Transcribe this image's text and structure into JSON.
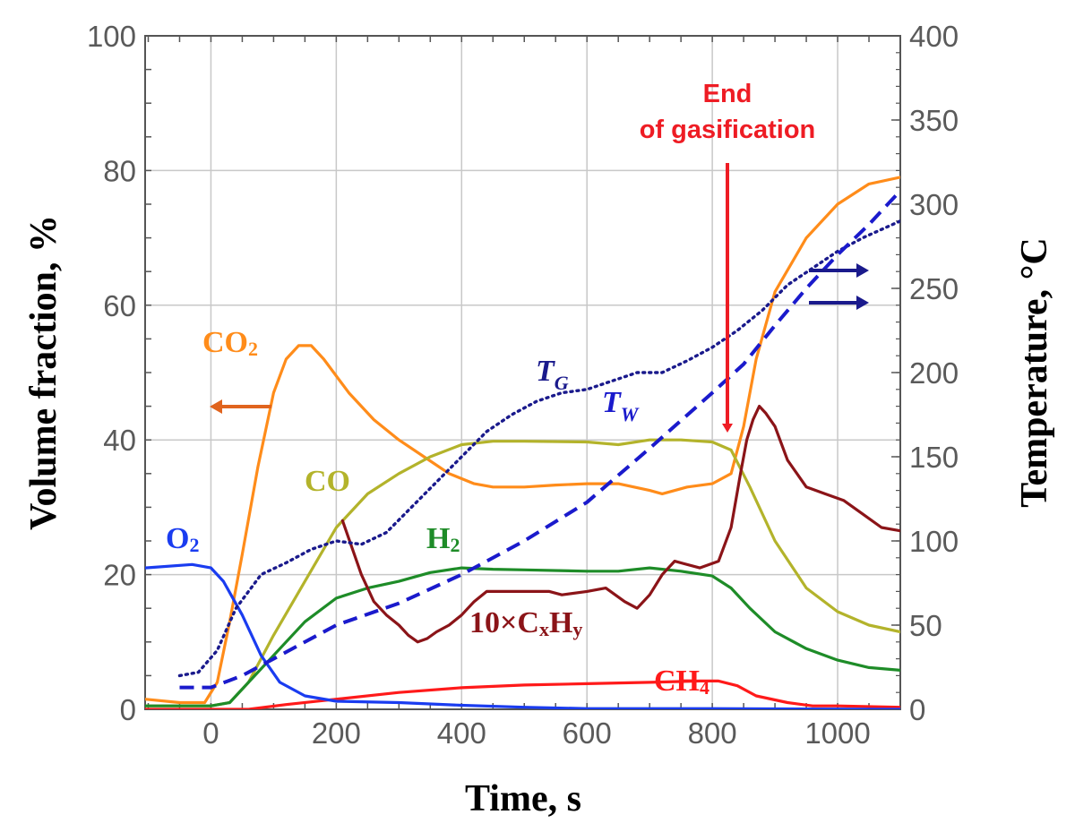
{
  "chart_data": {
    "type": "line",
    "xlabel": "Time, s",
    "ylabel_left": "Volume fraction, %",
    "ylabel_right": "Temperature, °C",
    "xlim": [
      -105,
      1100
    ],
    "ylim_left": [
      0,
      100
    ],
    "ylim_right": [
      0,
      400
    ],
    "grid": true,
    "x_ticks": [
      0,
      200,
      400,
      600,
      800,
      1000
    ],
    "y_left_ticks": [
      0,
      20,
      40,
      60,
      80,
      100
    ],
    "y_right_ticks": [
      0,
      50,
      100,
      150,
      200,
      250,
      300,
      350,
      400
    ],
    "annotation": {
      "line1": "End",
      "line2": "of gasification",
      "x": 830,
      "color": "#ee1c24"
    },
    "series": [
      {
        "name": "CO2",
        "label_main": "CO",
        "label_sub": "2",
        "axis": "left",
        "color": "#ff8c1a",
        "dash": "solid",
        "points": [
          [
            -105,
            1.5
          ],
          [
            -50,
            1
          ],
          [
            -10,
            1
          ],
          [
            10,
            4
          ],
          [
            30,
            13
          ],
          [
            50,
            23
          ],
          [
            75,
            36
          ],
          [
            100,
            47
          ],
          [
            120,
            52
          ],
          [
            140,
            54
          ],
          [
            160,
            54
          ],
          [
            180,
            52
          ],
          [
            220,
            47
          ],
          [
            260,
            43
          ],
          [
            300,
            40
          ],
          [
            340,
            37.5
          ],
          [
            380,
            35
          ],
          [
            420,
            33.5
          ],
          [
            450,
            33
          ],
          [
            500,
            33
          ],
          [
            550,
            33.3
          ],
          [
            600,
            33.5
          ],
          [
            650,
            33.5
          ],
          [
            700,
            32.5
          ],
          [
            720,
            32
          ],
          [
            760,
            33
          ],
          [
            800,
            33.5
          ],
          [
            830,
            35
          ],
          [
            850,
            42
          ],
          [
            870,
            52
          ],
          [
            900,
            62
          ],
          [
            950,
            70
          ],
          [
            1000,
            75
          ],
          [
            1050,
            78
          ],
          [
            1100,
            79
          ]
        ]
      },
      {
        "name": "CO",
        "label_main": "CO",
        "label_sub": "",
        "axis": "left",
        "color": "#b3b32b",
        "dash": "solid",
        "points": [
          [
            -105,
            0.5
          ],
          [
            0,
            0.5
          ],
          [
            30,
            1
          ],
          [
            60,
            4
          ],
          [
            100,
            11
          ],
          [
            150,
            19
          ],
          [
            200,
            27
          ],
          [
            250,
            32
          ],
          [
            300,
            35
          ],
          [
            350,
            37.5
          ],
          [
            400,
            39.3
          ],
          [
            450,
            39.8
          ],
          [
            500,
            39.8
          ],
          [
            600,
            39.7
          ],
          [
            650,
            39.3
          ],
          [
            700,
            40
          ],
          [
            750,
            40
          ],
          [
            800,
            39.7
          ],
          [
            830,
            38.5
          ],
          [
            860,
            33
          ],
          [
            900,
            25
          ],
          [
            950,
            18
          ],
          [
            1000,
            14.5
          ],
          [
            1050,
            12.5
          ],
          [
            1100,
            11.5
          ]
        ]
      },
      {
        "name": "H2",
        "label_main": "H",
        "label_sub": "2",
        "axis": "left",
        "color": "#1e8c28",
        "dash": "solid",
        "points": [
          [
            -105,
            0.5
          ],
          [
            0,
            0.5
          ],
          [
            30,
            1
          ],
          [
            60,
            4
          ],
          [
            100,
            8
          ],
          [
            150,
            13
          ],
          [
            200,
            16.5
          ],
          [
            250,
            18
          ],
          [
            300,
            19
          ],
          [
            350,
            20.3
          ],
          [
            400,
            21
          ],
          [
            450,
            20.8
          ],
          [
            500,
            20.7
          ],
          [
            600,
            20.5
          ],
          [
            650,
            20.5
          ],
          [
            700,
            21
          ],
          [
            750,
            20.5
          ],
          [
            800,
            19.8
          ],
          [
            830,
            18
          ],
          [
            860,
            15
          ],
          [
            900,
            11.5
          ],
          [
            950,
            9
          ],
          [
            1000,
            7.3
          ],
          [
            1050,
            6.2
          ],
          [
            1100,
            5.8
          ]
        ]
      },
      {
        "name": "CH4",
        "label_main": "CH",
        "label_sub": "4",
        "axis": "left",
        "color": "#ff1a1a",
        "dash": "solid",
        "points": [
          [
            -105,
            0
          ],
          [
            60,
            0
          ],
          [
            120,
            0.7
          ],
          [
            200,
            1.5
          ],
          [
            300,
            2.5
          ],
          [
            400,
            3.2
          ],
          [
            500,
            3.6
          ],
          [
            600,
            3.8
          ],
          [
            700,
            4
          ],
          [
            780,
            4.2
          ],
          [
            810,
            4.2
          ],
          [
            840,
            3.5
          ],
          [
            870,
            2
          ],
          [
            920,
            1
          ],
          [
            960,
            0.5
          ],
          [
            1000,
            0.5
          ],
          [
            1100,
            0.3
          ]
        ]
      },
      {
        "name": "O2",
        "label_main": "O",
        "label_sub": "2",
        "axis": "left",
        "color": "#1a3cf0",
        "dash": "solid",
        "points": [
          [
            -105,
            21
          ],
          [
            -30,
            21.5
          ],
          [
            0,
            21
          ],
          [
            20,
            19
          ],
          [
            50,
            14
          ],
          [
            80,
            8
          ],
          [
            110,
            4
          ],
          [
            150,
            2
          ],
          [
            200,
            1.2
          ],
          [
            300,
            1
          ],
          [
            400,
            0.6
          ],
          [
            500,
            0.3
          ],
          [
            600,
            0.1
          ],
          [
            800,
            0.1
          ],
          [
            1100,
            0
          ]
        ]
      },
      {
        "name": "10×CxHy",
        "label_main": "10×C",
        "label_sub": "x",
        "label_main2": "H",
        "label_sub2": "y",
        "axis": "left",
        "color": "#8b1418",
        "dash": "solid",
        "points": [
          [
            210,
            28
          ],
          [
            225,
            24
          ],
          [
            240,
            20
          ],
          [
            260,
            16
          ],
          [
            280,
            14
          ],
          [
            300,
            12.5
          ],
          [
            315,
            11
          ],
          [
            330,
            10
          ],
          [
            345,
            10.5
          ],
          [
            360,
            11.5
          ],
          [
            380,
            12.5
          ],
          [
            400,
            14
          ],
          [
            420,
            16
          ],
          [
            440,
            17.5
          ],
          [
            500,
            17.5
          ],
          [
            540,
            17.5
          ],
          [
            560,
            17
          ],
          [
            600,
            17.5
          ],
          [
            630,
            18
          ],
          [
            660,
            16
          ],
          [
            680,
            15
          ],
          [
            700,
            17
          ],
          [
            720,
            20
          ],
          [
            740,
            22
          ],
          [
            780,
            21
          ],
          [
            810,
            22
          ],
          [
            830,
            27
          ],
          [
            845,
            35
          ],
          [
            855,
            40
          ],
          [
            865,
            43
          ],
          [
            875,
            45
          ],
          [
            885,
            44
          ],
          [
            900,
            42
          ],
          [
            920,
            37
          ],
          [
            950,
            33
          ],
          [
            980,
            32
          ],
          [
            1010,
            31
          ],
          [
            1040,
            29
          ],
          [
            1070,
            27
          ],
          [
            1100,
            26.5
          ]
        ]
      },
      {
        "name": "TG",
        "label_main": "T",
        "label_sub": "G",
        "axis": "right",
        "color": "#1a1a8c",
        "dash": "dotted",
        "points": [
          [
            -50,
            20
          ],
          [
            -20,
            22
          ],
          [
            10,
            35
          ],
          [
            40,
            60
          ],
          [
            80,
            80
          ],
          [
            120,
            87
          ],
          [
            160,
            95
          ],
          [
            200,
            100
          ],
          [
            240,
            98
          ],
          [
            280,
            105
          ],
          [
            320,
            120
          ],
          [
            360,
            135
          ],
          [
            400,
            150
          ],
          [
            440,
            165
          ],
          [
            480,
            175
          ],
          [
            520,
            183
          ],
          [
            560,
            188
          ],
          [
            600,
            190
          ],
          [
            640,
            195
          ],
          [
            680,
            200
          ],
          [
            720,
            200
          ],
          [
            760,
            207
          ],
          [
            800,
            215
          ],
          [
            840,
            225
          ],
          [
            880,
            237
          ],
          [
            920,
            252
          ],
          [
            960,
            262
          ],
          [
            1000,
            272
          ],
          [
            1040,
            280
          ],
          [
            1100,
            290
          ]
        ]
      },
      {
        "name": "TW",
        "label_main": "T",
        "label_sub": "W",
        "axis": "right",
        "color": "#1a1acc",
        "dash": "dashed",
        "points": [
          [
            -50,
            13
          ],
          [
            0,
            13
          ],
          [
            50,
            20
          ],
          [
            100,
            30
          ],
          [
            150,
            40
          ],
          [
            200,
            50
          ],
          [
            300,
            63
          ],
          [
            400,
            80
          ],
          [
            500,
            100
          ],
          [
            600,
            123
          ],
          [
            700,
            155
          ],
          [
            800,
            188
          ],
          [
            850,
            205
          ],
          [
            900,
            228
          ],
          [
            950,
            250
          ],
          [
            1000,
            270
          ],
          [
            1050,
            288
          ],
          [
            1100,
            308
          ]
        ]
      }
    ]
  }
}
